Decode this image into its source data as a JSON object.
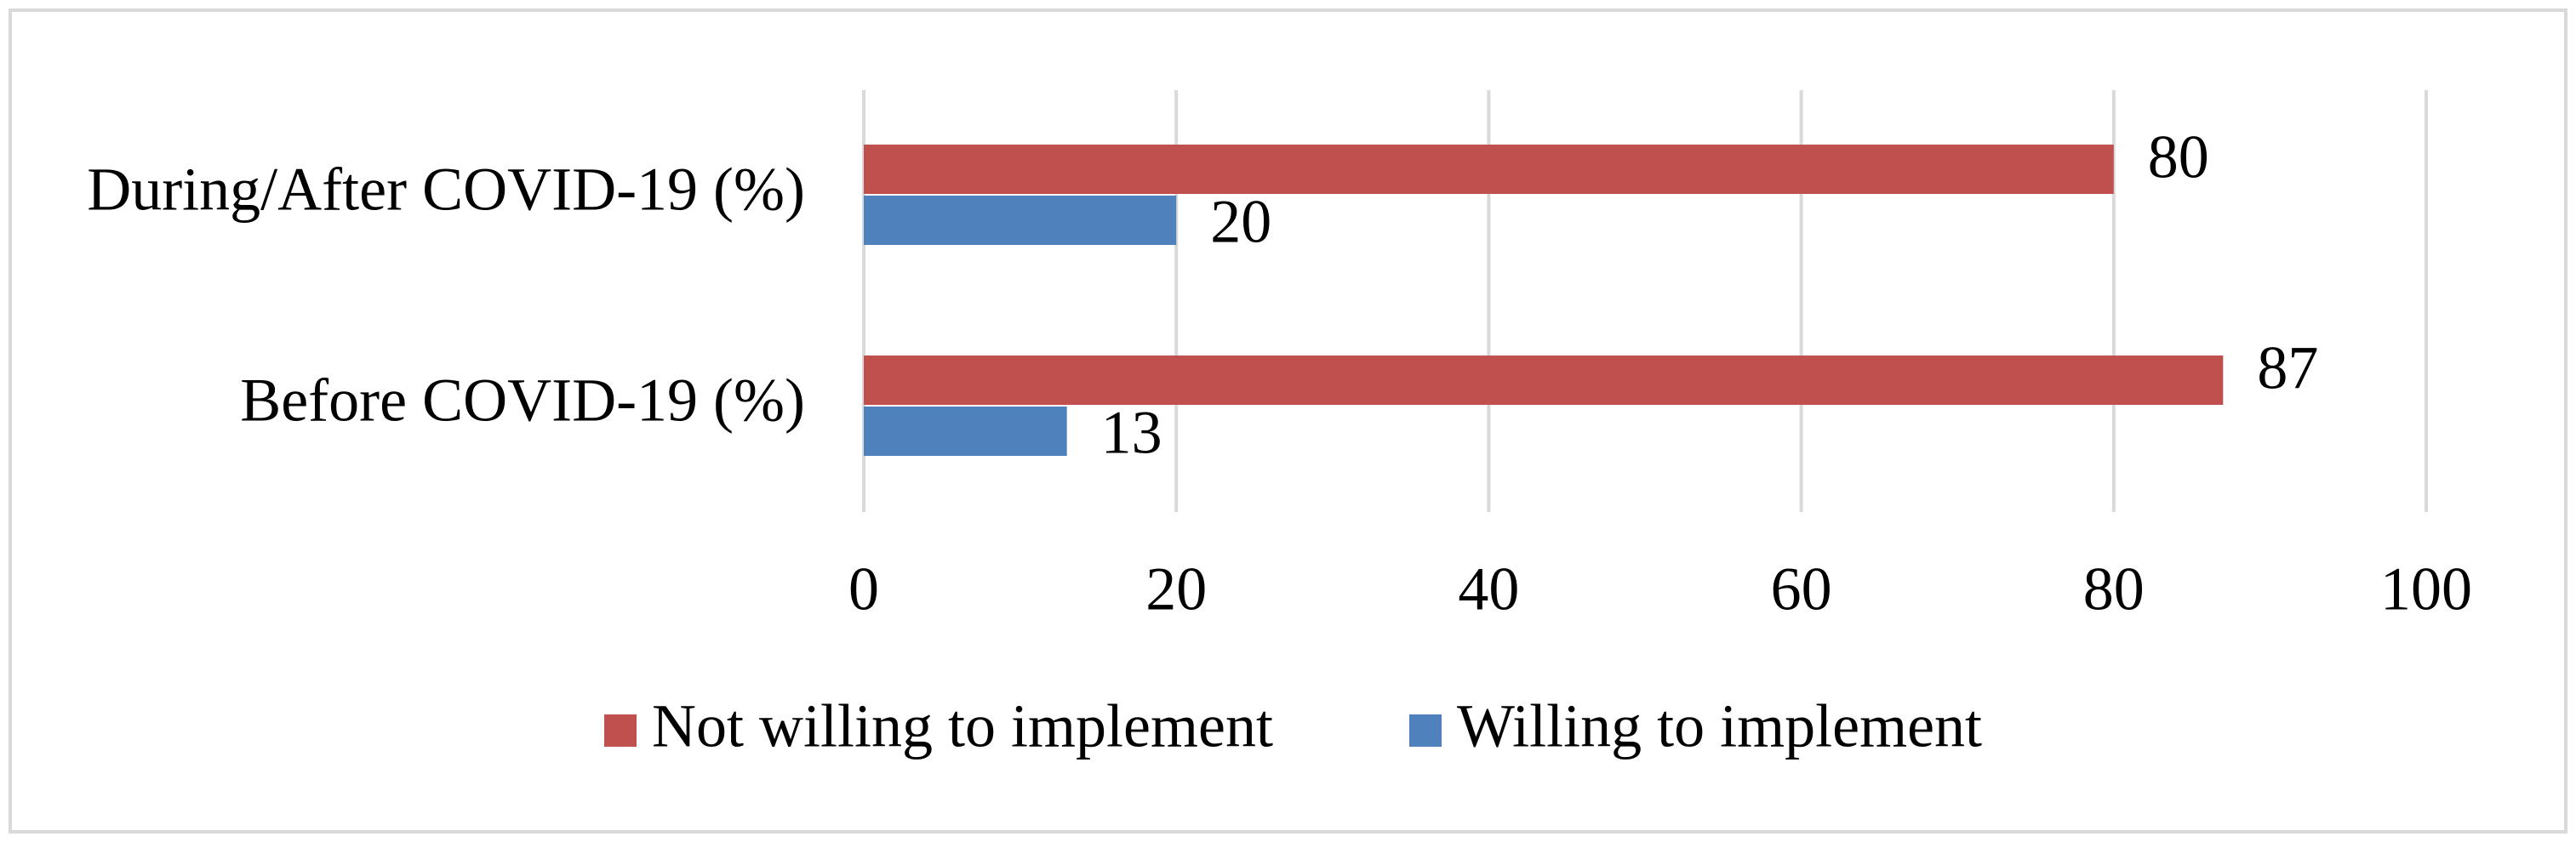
{
  "chart_data": {
    "type": "hbar",
    "categories": [
      "During/After COVID-19 (%)",
      "Before COVID-19 (%)"
    ],
    "series": [
      {
        "name": "Not willing to implement",
        "color": "#c0504d",
        "values": [
          80,
          87
        ]
      },
      {
        "name": "Willing to implement",
        "color": "#4f81bd",
        "values": [
          20,
          13
        ]
      }
    ],
    "xlim": [
      0,
      100
    ],
    "xticks": [
      0,
      20,
      40,
      60,
      80,
      100
    ],
    "grid": true,
    "legend": "bottom"
  }
}
